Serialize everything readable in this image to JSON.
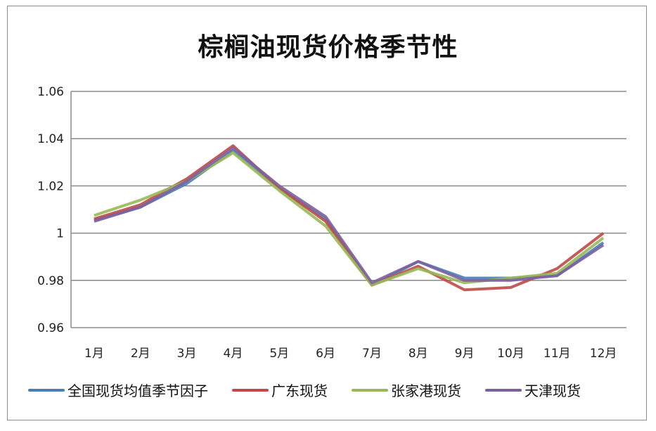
{
  "chart_data": {
    "type": "line",
    "title": "棕榈油现货价格季节性",
    "xlabel": "",
    "ylabel": "",
    "categories": [
      "1月",
      "2月",
      "3月",
      "4月",
      "5月",
      "6月",
      "7月",
      "8月",
      "9月",
      "10月",
      "11月",
      "12月"
    ],
    "ylim": [
      0.96,
      1.06
    ],
    "yticks": [
      "0.96",
      "0.98",
      "1",
      "1.02",
      "1.04",
      "1.06"
    ],
    "grid": true,
    "legend_position": "bottom",
    "series": [
      {
        "name": "全国现货均值季节因子",
        "color": "#4a7ebb",
        "values": [
          1.0055,
          1.011,
          1.021,
          1.035,
          1.019,
          1.006,
          0.978,
          0.988,
          0.981,
          0.981,
          0.982,
          0.996
        ]
      },
      {
        "name": "广东现货",
        "color": "#be4b48",
        "values": [
          1.006,
          1.012,
          1.023,
          1.037,
          1.019,
          1.005,
          0.978,
          0.986,
          0.976,
          0.977,
          0.985,
          1.0
        ]
      },
      {
        "name": "张家港现货",
        "color": "#98b954",
        "values": [
          1.0075,
          1.014,
          1.022,
          1.034,
          1.018,
          1.003,
          0.978,
          0.985,
          0.979,
          0.981,
          0.983,
          0.998
        ]
      },
      {
        "name": "天津现货",
        "color": "#7d60a0",
        "values": [
          1.005,
          1.011,
          1.022,
          1.036,
          1.02,
          1.007,
          0.979,
          0.988,
          0.98,
          0.98,
          0.982,
          0.995
        ]
      }
    ]
  }
}
